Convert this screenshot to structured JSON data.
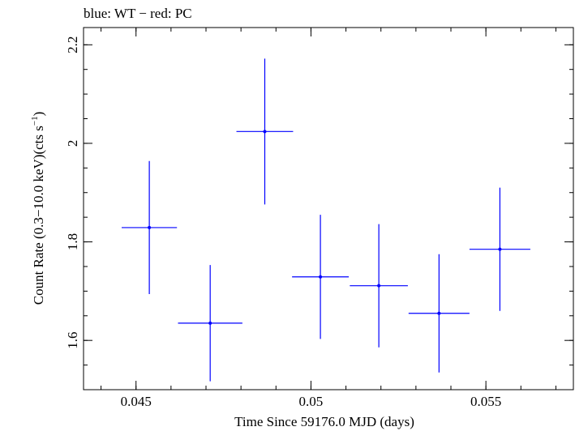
{
  "chart_data": {
    "type": "scatter",
    "title": "blue: WT − red: PC",
    "xlabel": "Time Since 59176.0 MJD (days)",
    "ylabel_main": "Count Rate (0.3−10.0 keV)(cts s",
    "ylabel_sup": "−1",
    "ylabel_tail": ")",
    "xlim": [
      0.0435,
      0.0575
    ],
    "ylim": [
      1.5,
      2.235
    ],
    "x_ticks": [
      {
        "value": 0.045,
        "label": "0.045"
      },
      {
        "value": 0.05,
        "label": "0.05"
      },
      {
        "value": 0.055,
        "label": "0.055"
      }
    ],
    "x_minor_step": 0.001,
    "y_ticks": [
      {
        "value": 1.6,
        "label": "1.6"
      },
      {
        "value": 1.8,
        "label": "1.8"
      },
      {
        "value": 2.0,
        "label": "2"
      },
      {
        "value": 2.2,
        "label": "2.2"
      }
    ],
    "y_minor_step": 0.05,
    "grid": false,
    "series": [
      {
        "color": "#0000ff",
        "points": [
          {
            "x": 0.04538,
            "xerr": 0.00079,
            "y": 1.829,
            "yerr": 0.135
          },
          {
            "x": 0.04712,
            "xerr": 0.00092,
            "y": 1.635,
            "yerr": 0.118
          },
          {
            "x": 0.04868,
            "xerr": 0.00081,
            "y": 2.024,
            "yerr": 0.148
          },
          {
            "x": 0.05027,
            "xerr": 0.00081,
            "y": 1.729,
            "yerr": 0.126
          },
          {
            "x": 0.05194,
            "xerr": 0.00083,
            "y": 1.711,
            "yerr": 0.125
          },
          {
            "x": 0.05366,
            "xerr": 0.00087,
            "y": 1.655,
            "yerr": 0.12
          },
          {
            "x": 0.0554,
            "xerr": 0.00087,
            "y": 1.785,
            "yerr": 0.125
          }
        ]
      }
    ]
  }
}
